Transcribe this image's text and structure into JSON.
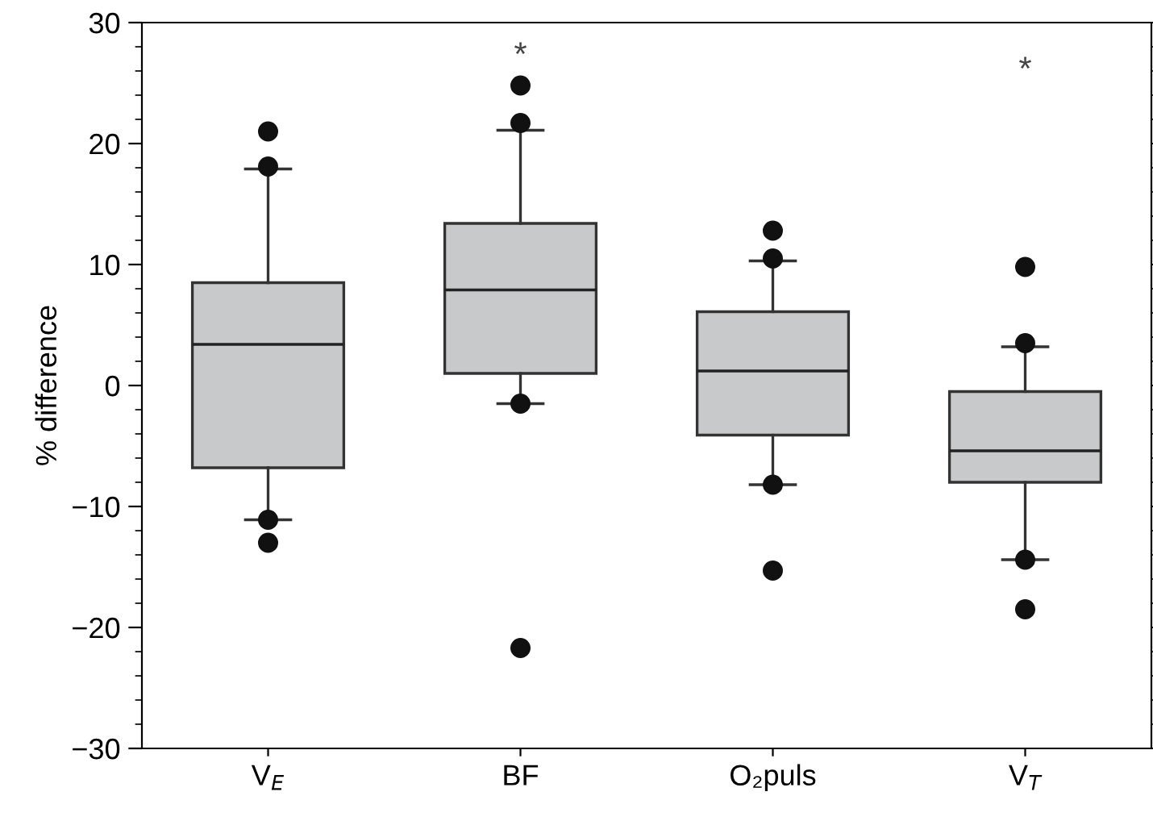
{
  "chart_data": {
    "type": "box",
    "ylabel": "% difference",
    "categories": [
      "V$_{E}$",
      "BF",
      "O₂puls",
      "V$_{T}$"
    ],
    "color": "#c8c9cb",
    "boxes": [
      {
        "low": -11.1,
        "q1": -6.8,
        "median": 3.4,
        "q3": 8.5,
        "high": 17.9,
        "outliers": [
          21.0,
          18.1,
          -11.1,
          -13.0
        ]
      },
      {
        "low": -1.5,
        "q1": 1.0,
        "median": 7.9,
        "q3": 13.4,
        "high": 21.1,
        "outliers": [
          24.8,
          21.7,
          -1.5,
          -21.7
        ]
      },
      {
        "low": -8.2,
        "q1": -4.1,
        "median": 1.2,
        "q3": 6.1,
        "high": 10.3,
        "outliers": [
          12.8,
          10.5,
          -8.2,
          -15.3
        ]
      },
      {
        "low": -14.4,
        "q1": -8.0,
        "median": -5.4,
        "q3": -0.5,
        "high": 3.2,
        "outliers": [
          9.8,
          3.5,
          -14.4,
          -18.5
        ]
      }
    ],
    "ylim": [
      -30,
      30
    ],
    "yticks": [
      {
        "value": -30,
        "label": "−30"
      },
      {
        "value": -28,
        "label": null
      },
      {
        "value": -26,
        "label": null
      },
      {
        "value": -24,
        "label": null
      },
      {
        "value": -22,
        "label": null
      },
      {
        "value": -20,
        "label": "−20"
      },
      {
        "value": -18,
        "label": null
      },
      {
        "value": -16,
        "label": null
      },
      {
        "value": -14,
        "label": null
      },
      {
        "value": -12,
        "label": null
      },
      {
        "value": -10,
        "label": "−10"
      },
      {
        "value": -8,
        "label": null
      },
      {
        "value": -6,
        "label": null
      },
      {
        "value": -4,
        "label": null
      },
      {
        "value": -2,
        "label": null
      },
      0,
      {
        "value": 2,
        "label": null
      },
      {
        "value": 4,
        "label": null
      },
      {
        "value": 6,
        "label": null
      },
      {
        "value": 8,
        "label": null
      },
      10,
      {
        "value": 12,
        "label": null
      },
      {
        "value": 14,
        "label": null
      },
      {
        "value": 16,
        "label": null
      },
      {
        "value": 18,
        "label": null
      },
      20,
      {
        "value": 22,
        "label": null
      },
      {
        "value": 24,
        "label": null
      },
      {
        "value": 26,
        "label": null
      },
      {
        "value": 28,
        "label": null
      },
      30
    ],
    "annotations": [
      "*",
      "*"
    ],
    "grid": false,
    "legend": false
  }
}
